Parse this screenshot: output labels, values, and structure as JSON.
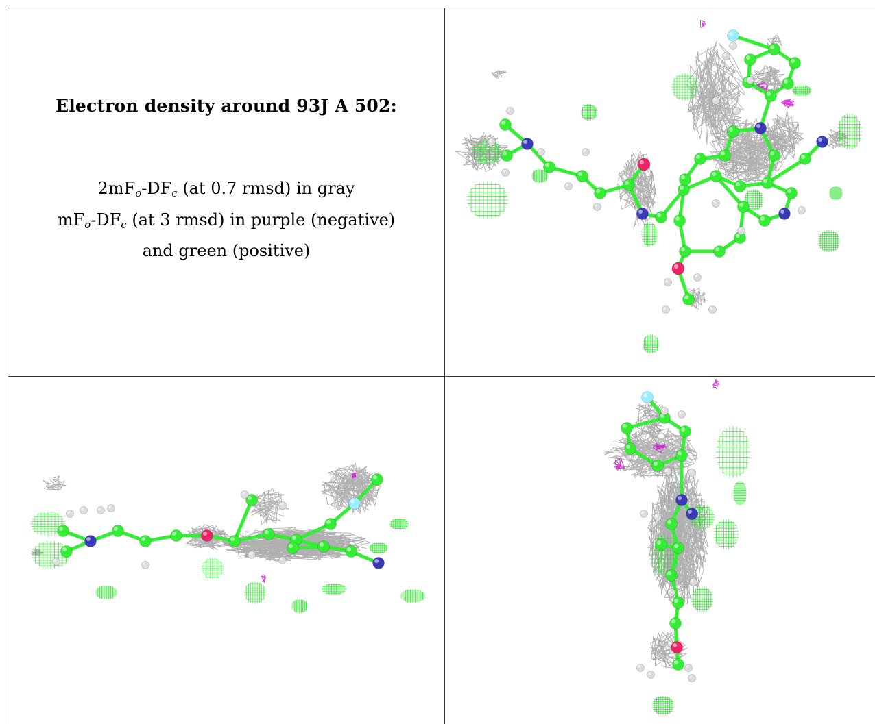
{
  "caption": {
    "title": "Electron density around 93J A 502:",
    "line1": {
      "prefix": "2mF",
      "sub1": "o",
      "mid": "-DF",
      "sub2": "c",
      "suffix": " (at 0.7 rmsd) in gray"
    },
    "line2": {
      "prefix": "mF",
      "sub1": "o",
      "mid": "-DF",
      "sub2": "c",
      "suffix": " (at 3 rmsd) in purple (negative)"
    },
    "line3": "and green (positive)"
  },
  "colors": {
    "carbon": "#33ee33",
    "nitrogen": "#3a3ab8",
    "oxygen": "#ee2266",
    "fluorine": "#99eeff",
    "hydrogen": "#dddddd",
    "mesh_gray": "#a8a8a8",
    "mesh_green": "#22dd22",
    "mesh_purple": "#cc22cc"
  },
  "panels": [
    {
      "id": "view-top-right",
      "icon": "molecule-density-view"
    },
    {
      "id": "view-bottom-left",
      "icon": "molecule-density-side-view"
    },
    {
      "id": "view-bottom-right",
      "icon": "molecule-density-end-view"
    }
  ]
}
